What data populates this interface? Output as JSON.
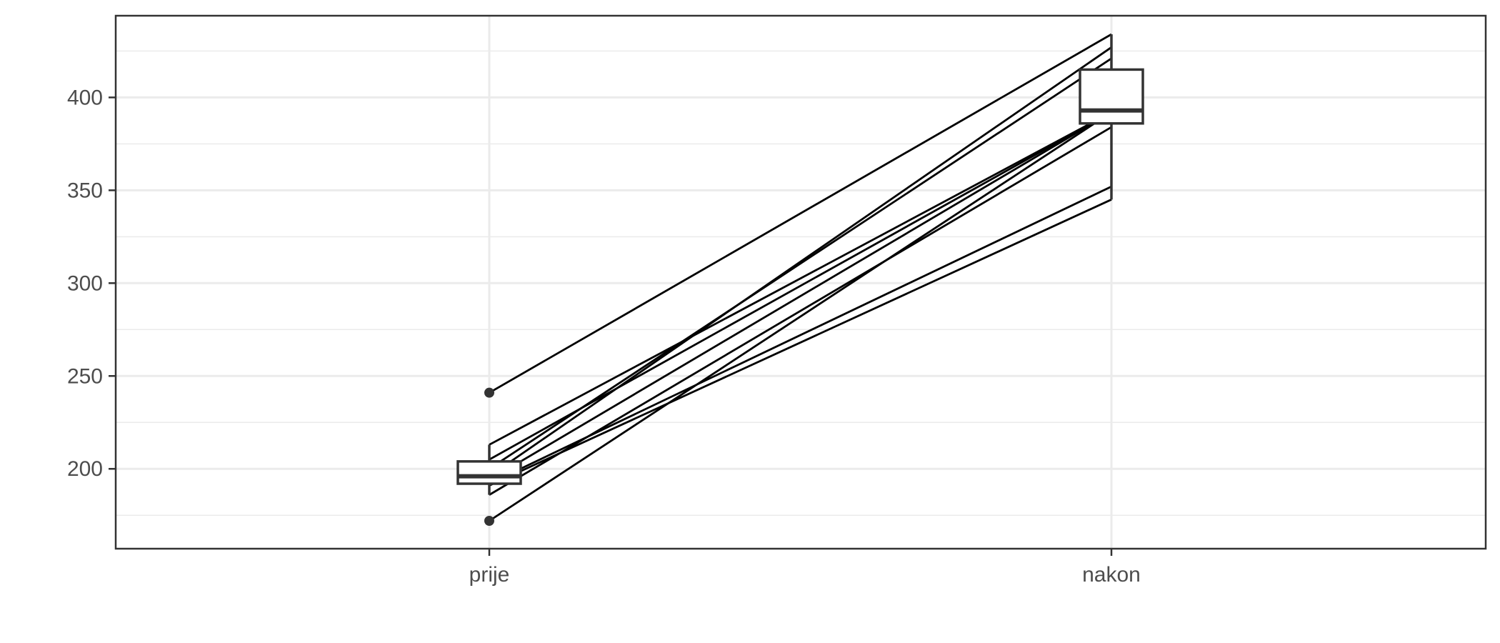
{
  "chart_data": {
    "type": "box",
    "title": "",
    "xlabel": "",
    "ylabel": "",
    "categories": [
      "prije",
      "nakon"
    ],
    "ylim": [
      157,
      444
    ],
    "y_ticks": [
      200,
      250,
      300,
      350,
      400
    ],
    "y_tick_labels": [
      "200",
      "250",
      "300",
      "350",
      "400"
    ],
    "grid": true,
    "paired_lines": [
      {
        "prije": 241,
        "nakon": 434
      },
      {
        "prije": 213,
        "nakon": 392
      },
      {
        "prije": 205,
        "nakon": 392
      },
      {
        "prije": 200,
        "nakon": 421
      },
      {
        "prije": 196,
        "nakon": 427
      },
      {
        "prije": 194,
        "nakon": 392
      },
      {
        "prije": 192,
        "nakon": 352
      },
      {
        "prije": 191,
        "nakon": 345
      },
      {
        "prije": 186,
        "nakon": 384
      },
      {
        "prije": 172,
        "nakon": 392
      }
    ],
    "boxes": [
      {
        "category": "prije",
        "q1": 192,
        "median": 196,
        "q3": 204,
        "whisker_low": 186,
        "whisker_high": 213,
        "outliers": [
          172,
          241
        ]
      },
      {
        "category": "nakon",
        "q1": 386,
        "median": 393,
        "q3": 415,
        "whisker_low": 345,
        "whisker_high": 434,
        "outliers": []
      }
    ]
  }
}
